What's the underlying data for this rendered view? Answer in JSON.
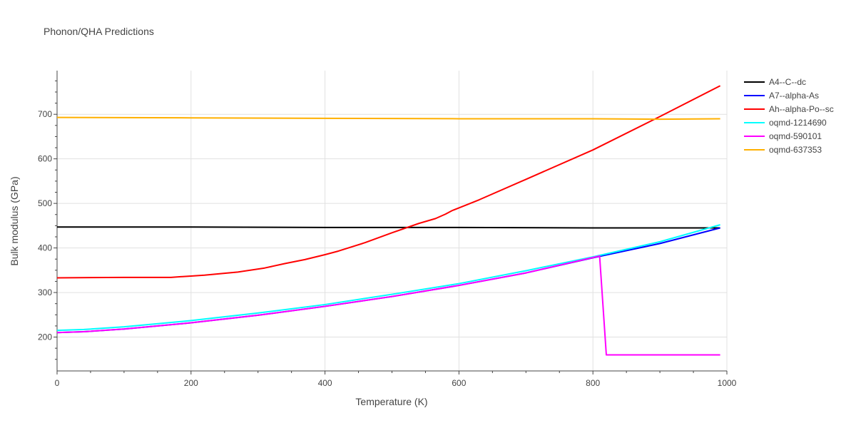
{
  "chart_data": {
    "type": "line",
    "title": "Phonon/QHA Predictions",
    "xlabel": "Temperature (K)",
    "ylabel": "Bulk modulus (GPa)",
    "xlim": [
      0,
      1000
    ],
    "ylim": [
      124,
      798
    ],
    "xticks": [
      0,
      200,
      400,
      600,
      800,
      1000
    ],
    "yticks": [
      200,
      300,
      400,
      500,
      600,
      700
    ],
    "grid": true,
    "legend_position": "top-right, outside plot",
    "series": [
      {
        "name": "A4--C--dc",
        "color": "#000000",
        "x": [
          0,
          200,
          400,
          600,
          800,
          990
        ],
        "y": [
          447,
          447,
          446,
          446,
          445,
          445
        ]
      },
      {
        "name": "A7--alpha-As",
        "color": "#0000ff",
        "x": [
          0,
          40,
          100,
          200,
          300,
          400,
          500,
          600,
          700,
          800,
          900,
          990
        ],
        "y": [
          210,
          212,
          218,
          232,
          249,
          269,
          291,
          316,
          344,
          378,
          410,
          445
        ]
      },
      {
        "name": "Ah--alpha-Po--sc",
        "color": "#ff0000",
        "x": [
          0,
          100,
          170,
          200,
          220,
          270,
          310,
          340,
          370,
          400,
          420,
          460,
          500,
          540,
          565,
          580,
          590,
          600,
          630,
          700,
          800,
          900,
          990
        ],
        "y": [
          333,
          334,
          334,
          337,
          339,
          346,
          355,
          365,
          374,
          385,
          393,
          412,
          434,
          455,
          466,
          476,
          484,
          490,
          508,
          554,
          620,
          695,
          764
        ]
      },
      {
        "name": "oqmd-1214690",
        "color": "#00ffff",
        "x": [
          0,
          40,
          100,
          200,
          300,
          400,
          500,
          600,
          700,
          800,
          900,
          990
        ],
        "y": [
          215,
          217,
          223,
          237,
          254,
          273,
          296,
          320,
          349,
          380,
          414,
          452
        ]
      },
      {
        "name": "oqmd-590101",
        "color": "#ff00ff",
        "x": [
          0,
          40,
          100,
          200,
          300,
          400,
          500,
          600,
          700,
          810,
          820,
          990
        ],
        "y": [
          210,
          212,
          218,
          232,
          249,
          269,
          291,
          316,
          344,
          382,
          160,
          160
        ]
      },
      {
        "name": "oqmd-637353",
        "color": "#ffb000",
        "x": [
          0,
          200,
          400,
          600,
          800,
          900,
          990
        ],
        "y": [
          693,
          692,
          691,
          690,
          690,
          689,
          690
        ]
      }
    ]
  }
}
